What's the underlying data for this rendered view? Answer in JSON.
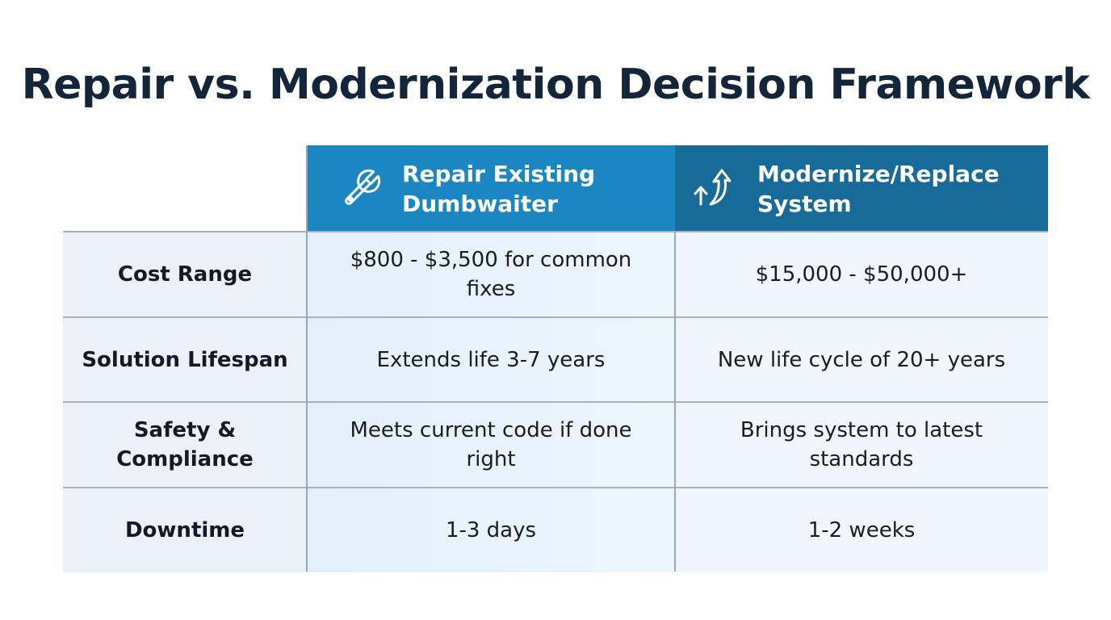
{
  "title": "Repair vs. Modernization Decision Framework",
  "columns": [
    {
      "label": "Repair Existing\nDumbwaiter",
      "icon": "wrench-icon",
      "color": "#1a86c2"
    },
    {
      "label": "Modernize/Replace\nSystem",
      "icon": "upgrade-arrows-icon",
      "color": "#166b98"
    }
  ],
  "rows": [
    {
      "label": "Cost Range",
      "repair": "$800 - $3,500 for common fixes",
      "modernize": "$15,000 - $50,000+"
    },
    {
      "label": "Solution Lifespan",
      "repair": "Extends life 3-7 years",
      "modernize": "New life cycle of 20+ years"
    },
    {
      "label": "Safety & Compliance",
      "repair": "Meets current code if done right",
      "modernize": "Brings system to latest standards"
    },
    {
      "label": "Downtime",
      "repair": "1-3 days",
      "modernize": "1-2 weeks"
    }
  ],
  "colors": {
    "title": "#13253a",
    "label_bg": "#eaf2f9",
    "repair_bg": "#e2f0fb",
    "modern_bg": "#f0f7fc",
    "grid": "#a7b2bb"
  }
}
